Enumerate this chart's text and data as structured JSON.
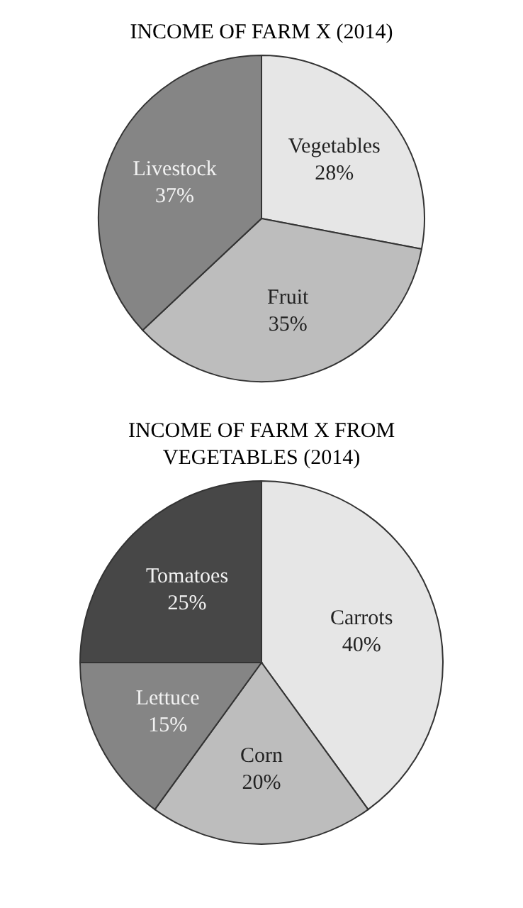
{
  "chart_data": [
    {
      "type": "pie",
      "title": "INCOME OF FARM X (2014)",
      "categories": [
        "Vegetables",
        "Fruit",
        "Livestock"
      ],
      "values": [
        28,
        35,
        37
      ],
      "value_labels": [
        "28%",
        "35%",
        "37%"
      ],
      "colors": [
        "#e6e6e6",
        "#bdbdbd",
        "#858585"
      ],
      "legend": false
    },
    {
      "type": "pie",
      "title": "INCOME OF FARM X FROM VEGETABLES (2014)",
      "categories": [
        "Carrots",
        "Corn",
        "Lettuce",
        "Tomatoes"
      ],
      "values": [
        40,
        20,
        15,
        25
      ],
      "value_labels": [
        "40%",
        "20%",
        "15%",
        "25%"
      ],
      "colors": [
        "#e6e6e6",
        "#bdbdbd",
        "#858585",
        "#474747"
      ],
      "legend": false
    }
  ]
}
